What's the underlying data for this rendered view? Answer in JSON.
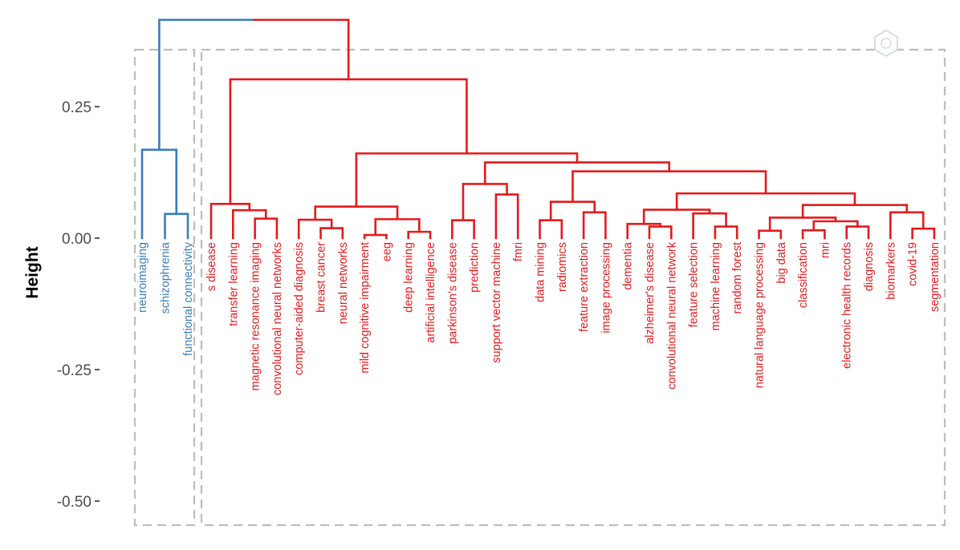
{
  "chart_data": {
    "type": "dendrogram",
    "ylabel": "Height",
    "ylim": [
      -0.55,
      0.42
    ],
    "yticks": [
      {
        "value": 0.25,
        "label": "0.25"
      },
      {
        "value": 0.0,
        "label": "0.00"
      },
      {
        "value": -0.25,
        "label": "-0.25"
      },
      {
        "value": -0.5,
        "label": "-0.50"
      }
    ],
    "clusters": [
      {
        "name": "cluster-1",
        "color": "#377EB8"
      },
      {
        "name": "cluster-2",
        "color": "#E41A1C"
      }
    ],
    "leaves": [
      {
        "label": "neuroimaging",
        "cluster": 0
      },
      {
        "label": "schizophrenia",
        "cluster": 0
      },
      {
        "label": "functional connectivity",
        "cluster": 0
      },
      {
        "label": "s disease",
        "cluster": 1
      },
      {
        "label": "transfer learning",
        "cluster": 1
      },
      {
        "label": "magnetic resonance imaging",
        "cluster": 1
      },
      {
        "label": "convolutional neural networks",
        "cluster": 1
      },
      {
        "label": "computer-aided diagnosis",
        "cluster": 1
      },
      {
        "label": "breast cancer",
        "cluster": 1
      },
      {
        "label": "neural networks",
        "cluster": 1
      },
      {
        "label": "mild cognitive impairment",
        "cluster": 1
      },
      {
        "label": "eeg",
        "cluster": 1
      },
      {
        "label": "deep learning",
        "cluster": 1
      },
      {
        "label": "artificial intelligence",
        "cluster": 1
      },
      {
        "label": "parkinson's disease",
        "cluster": 1
      },
      {
        "label": "prediction",
        "cluster": 1
      },
      {
        "label": "support vector machine",
        "cluster": 1
      },
      {
        "label": "fmri",
        "cluster": 1
      },
      {
        "label": "data mining",
        "cluster": 1
      },
      {
        "label": "radiomics",
        "cluster": 1
      },
      {
        "label": "feature extraction",
        "cluster": 1
      },
      {
        "label": "image processing",
        "cluster": 1
      },
      {
        "label": "dementia",
        "cluster": 1
      },
      {
        "label": "alzheimer's disease",
        "cluster": 1
      },
      {
        "label": "convolutional neural network",
        "cluster": 1
      },
      {
        "label": "feature selection",
        "cluster": 1
      },
      {
        "label": "machine learning",
        "cluster": 1
      },
      {
        "label": "random forest",
        "cluster": 1
      },
      {
        "label": "natural language processing",
        "cluster": 1
      },
      {
        "label": "big data",
        "cluster": 1
      },
      {
        "label": "classification",
        "cluster": 1
      },
      {
        "label": "mri",
        "cluster": 1
      },
      {
        "label": "electronic health records",
        "cluster": 1
      },
      {
        "label": "diagnosis",
        "cluster": 1
      },
      {
        "label": "biomarkers",
        "cluster": 1
      },
      {
        "label": "covid-19",
        "cluster": 1
      },
      {
        "label": "segmentation",
        "cluster": 1
      }
    ],
    "merges": [
      {
        "name": "m-schizo-fc",
        "left": {
          "leaf": 1
        },
        "right": {
          "leaf": 2
        },
        "height": 0.046
      },
      {
        "name": "m-blue",
        "left": {
          "leaf": 0
        },
        "right": {
          "node": "m-schizo-fc"
        },
        "height": 0.168
      },
      {
        "name": "m-mri-cnns",
        "left": {
          "leaf": 5
        },
        "right": {
          "leaf": 6
        },
        "height": 0.037
      },
      {
        "name": "m-tl",
        "left": {
          "leaf": 4
        },
        "right": {
          "node": "m-mri-cnns"
        },
        "height": 0.053
      },
      {
        "name": "m-sdisease",
        "left": {
          "leaf": 3
        },
        "right": {
          "node": "m-tl"
        },
        "height": 0.065
      },
      {
        "name": "m-bc-nn",
        "left": {
          "leaf": 8
        },
        "right": {
          "leaf": 9
        },
        "height": 0.019
      },
      {
        "name": "m-cad",
        "left": {
          "leaf": 7
        },
        "right": {
          "node": "m-bc-nn"
        },
        "height": 0.035
      },
      {
        "name": "m-mci-eeg",
        "left": {
          "leaf": 10
        },
        "right": {
          "leaf": 11
        },
        "height": 0.006
      },
      {
        "name": "m-dl-ai",
        "left": {
          "leaf": 12
        },
        "right": {
          "leaf": 13
        },
        "height": 0.012
      },
      {
        "name": "m-mci-dl",
        "left": {
          "node": "m-mci-eeg"
        },
        "right": {
          "node": "m-dl-ai"
        },
        "height": 0.036
      },
      {
        "name": "m-nn-group",
        "left": {
          "node": "m-cad"
        },
        "right": {
          "node": "m-mci-dl"
        },
        "height": 0.06
      },
      {
        "name": "m-pd-pred",
        "left": {
          "leaf": 14
        },
        "right": {
          "leaf": 15
        },
        "height": 0.034
      },
      {
        "name": "m-svm-fmri",
        "left": {
          "leaf": 16
        },
        "right": {
          "leaf": 17
        },
        "height": 0.083
      },
      {
        "name": "m-pd-group",
        "left": {
          "node": "m-pd-pred"
        },
        "right": {
          "node": "m-svm-fmri"
        },
        "height": 0.103
      },
      {
        "name": "m-dm-rad",
        "left": {
          "leaf": 18
        },
        "right": {
          "leaf": 19
        },
        "height": 0.034
      },
      {
        "name": "m-fe-ip",
        "left": {
          "leaf": 20
        },
        "right": {
          "leaf": 21
        },
        "height": 0.049
      },
      {
        "name": "m-dm-group",
        "left": {
          "node": "m-dm-rad"
        },
        "right": {
          "node": "m-fe-ip"
        },
        "height": 0.069
      },
      {
        "name": "m-ad-cnn",
        "left": {
          "leaf": 23
        },
        "right": {
          "leaf": 24
        },
        "height": 0.022
      },
      {
        "name": "m-dementia",
        "left": {
          "leaf": 22
        },
        "right": {
          "node": "m-ad-cnn"
        },
        "height": 0.027
      },
      {
        "name": "m-ml-rf",
        "left": {
          "leaf": 26
        },
        "right": {
          "leaf": 27
        },
        "height": 0.022
      },
      {
        "name": "m-fs-group",
        "left": {
          "leaf": 25
        },
        "right": {
          "node": "m-ml-rf"
        },
        "height": 0.047
      },
      {
        "name": "m-dem-group",
        "left": {
          "node": "m-dementia"
        },
        "right": {
          "node": "m-fs-group"
        },
        "height": 0.054
      },
      {
        "name": "m-nlp-bd",
        "left": {
          "leaf": 28
        },
        "right": {
          "leaf": 29
        },
        "height": 0.014
      },
      {
        "name": "m-cls-mri",
        "left": {
          "leaf": 30
        },
        "right": {
          "leaf": 31
        },
        "height": 0.015
      },
      {
        "name": "m-ehr-diag",
        "left": {
          "leaf": 32
        },
        "right": {
          "leaf": 33
        },
        "height": 0.022
      },
      {
        "name": "m-cls-group",
        "left": {
          "node": "m-cls-mri"
        },
        "right": {
          "node": "m-ehr-diag"
        },
        "height": 0.032
      },
      {
        "name": "m-nlp-group",
        "left": {
          "node": "m-nlp-bd"
        },
        "right": {
          "node": "m-cls-group"
        },
        "height": 0.039
      },
      {
        "name": "m-covid-seg",
        "left": {
          "leaf": 35
        },
        "right": {
          "leaf": 36
        },
        "height": 0.018
      },
      {
        "name": "m-bio",
        "left": {
          "leaf": 34
        },
        "right": {
          "node": "m-covid-seg"
        },
        "height": 0.049
      },
      {
        "name": "m-big-group",
        "left": {
          "node": "m-nlp-group"
        },
        "right": {
          "node": "m-bio"
        },
        "height": 0.063
      },
      {
        "name": "m-dem-big",
        "left": {
          "node": "m-dem-group"
        },
        "right": {
          "node": "m-big-group"
        },
        "height": 0.085
      },
      {
        "name": "m-dm-dem",
        "left": {
          "node": "m-dm-group"
        },
        "right": {
          "node": "m-dem-big"
        },
        "height": 0.127
      },
      {
        "name": "m-pd-dm",
        "left": {
          "node": "m-pd-group"
        },
        "right": {
          "node": "m-dm-dem"
        },
        "height": 0.144
      },
      {
        "name": "m-nn-pd",
        "left": {
          "node": "m-nn-group"
        },
        "right": {
          "node": "m-pd-dm"
        },
        "height": 0.161
      },
      {
        "name": "m-red",
        "left": {
          "node": "m-sdisease"
        },
        "right": {
          "node": "m-nn-pd"
        },
        "height": 0.302
      },
      {
        "name": "m-root",
        "left": {
          "node": "m-blue"
        },
        "right": {
          "node": "m-red"
        },
        "height": 0.415
      }
    ]
  }
}
